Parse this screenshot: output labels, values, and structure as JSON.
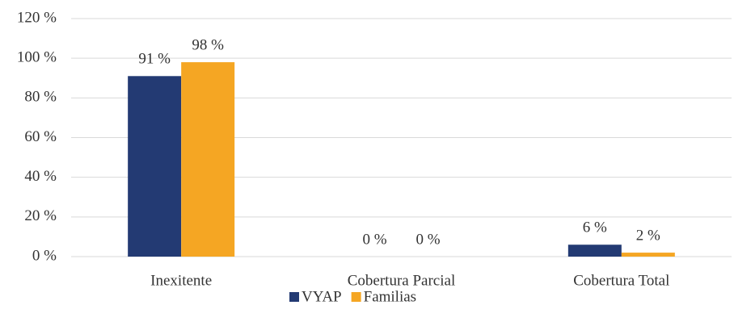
{
  "chart_data": {
    "type": "bar",
    "categories": [
      "Inexitente",
      "Cobertura Parcial",
      "Cobertura Total"
    ],
    "series": [
      {
        "name": "VYAP",
        "color": "#233a73",
        "values": [
          91,
          0,
          6
        ],
        "value_labels": [
          "91 %",
          "0 %",
          "6 %"
        ]
      },
      {
        "name": "Familias",
        "color": "#f5a623",
        "values": [
          98,
          0,
          2
        ],
        "value_labels": [
          "98 %",
          "0 %",
          "2 %"
        ]
      }
    ],
    "ylim": [
      0,
      120
    ],
    "yticks": [
      {
        "value": 0,
        "label": "0 %"
      },
      {
        "value": 20,
        "label": "20 %"
      },
      {
        "value": 40,
        "label": "40 %"
      },
      {
        "value": 60,
        "label": "60 %"
      },
      {
        "value": 80,
        "label": "80 %"
      },
      {
        "value": 100,
        "label": "100 %"
      },
      {
        "value": 120,
        "label": "120 %"
      }
    ],
    "grid": true,
    "legend": "bottom"
  }
}
